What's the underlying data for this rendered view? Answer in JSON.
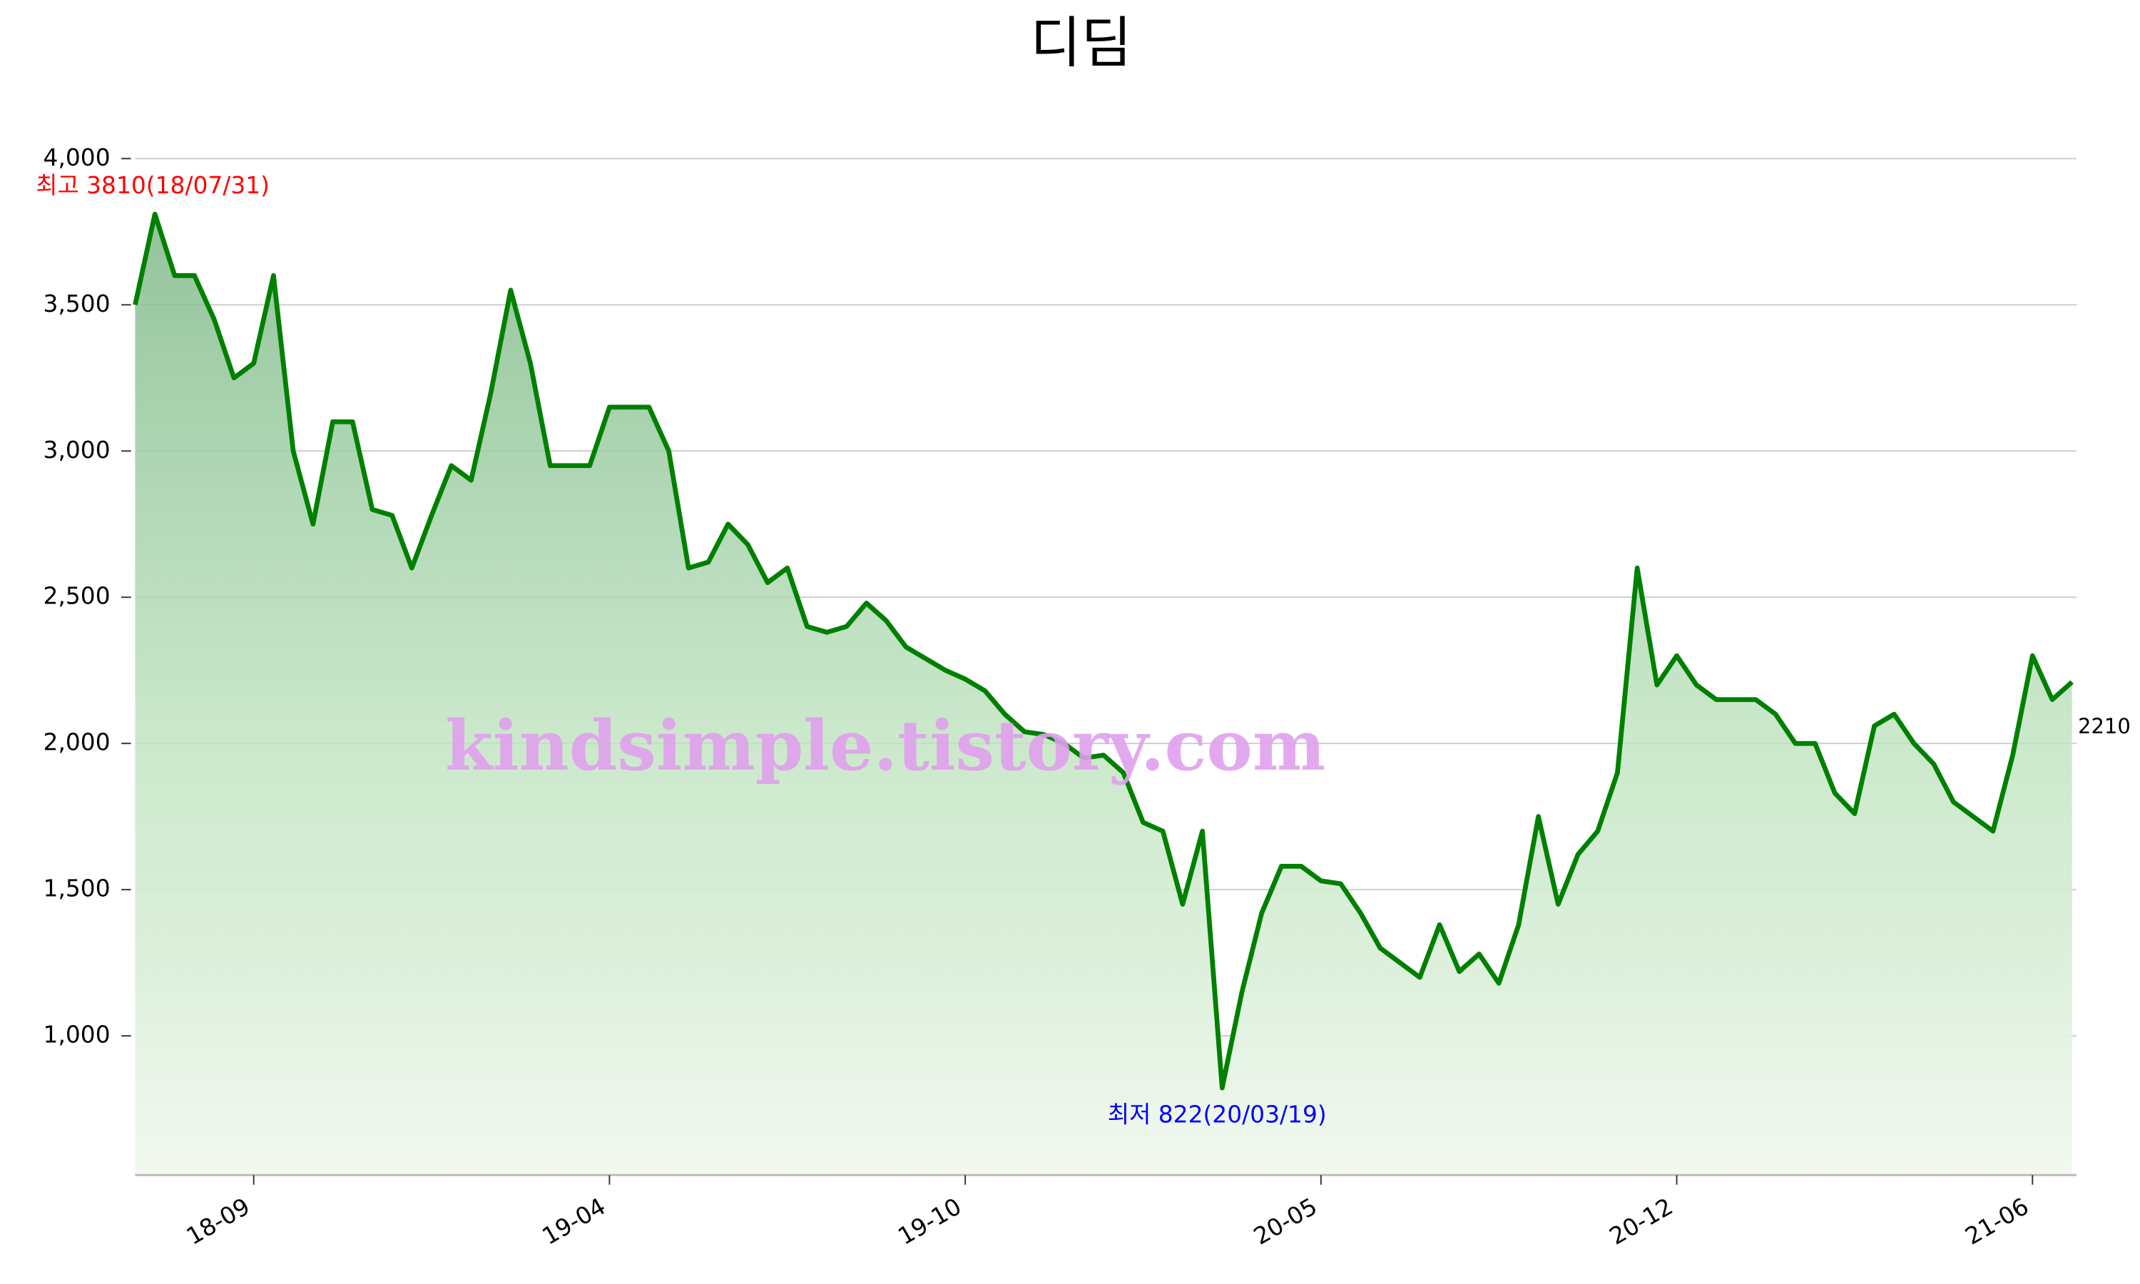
{
  "chart_data": {
    "type": "area-line",
    "title": "디딤",
    "watermark": "kindsimple.tistory.com",
    "color": "#008000",
    "x": [
      "18/07/20",
      "18/07/31",
      "18/08/11",
      "18/08/22",
      "18/09/02",
      "18/09/13",
      "18/09/24",
      "18/10/05",
      "18/10/16",
      "18/10/27",
      "18/11/07",
      "18/11/18",
      "18/11/29",
      "18/12/10",
      "18/12/21",
      "19/01/02",
      "19/01/12",
      "19/01/23",
      "19/02/03",
      "19/02/14",
      "19/02/25",
      "19/03/08",
      "19/03/19",
      "19/03/30",
      "19/04/10",
      "19/04/21",
      "19/05/02",
      "19/05/13",
      "19/05/24",
      "19/06/04",
      "19/06/15",
      "19/06/26",
      "19/07/07",
      "19/07/18",
      "19/07/29",
      "19/08/09",
      "19/08/20",
      "19/08/31",
      "19/09/11",
      "19/09/22",
      "19/10/03",
      "19/10/14",
      "19/10/25",
      "19/11/05",
      "19/11/16",
      "19/11/27",
      "19/12/08",
      "19/12/19",
      "19/12/30",
      "20/01/10",
      "20/01/21",
      "20/02/01",
      "20/02/12",
      "20/02/23",
      "20/03/08",
      "20/03/19",
      "20/03/30",
      "20/04/10",
      "20/04/21",
      "20/05/01",
      "20/05/12",
      "20/05/23",
      "20/06/03",
      "20/06/14",
      "20/06/25",
      "20/07/06",
      "20/07/17",
      "20/07/28",
      "20/08/08",
      "20/08/19",
      "20/08/30",
      "20/09/10",
      "20/09/21",
      "20/10/02",
      "20/10/13",
      "20/10/24",
      "20/11/04",
      "20/11/15",
      "20/12/01",
      "20/12/12",
      "20/12/23",
      "21/01/03",
      "21/01/14",
      "21/01/25",
      "21/02/05",
      "21/02/16",
      "21/02/27",
      "21/03/10",
      "21/03/21",
      "21/04/01",
      "21/04/12",
      "21/04/23",
      "21/05/04",
      "21/05/12",
      "21/05/20",
      "21/05/28",
      "21/06/04",
      "21/06/11",
      "21/06/18"
    ],
    "values": [
      3500,
      3810,
      3600,
      3600,
      3450,
      3250,
      3300,
      3600,
      3000,
      2750,
      3100,
      3100,
      2800,
      2780,
      2600,
      2780,
      2950,
      2900,
      3200,
      3550,
      3300,
      2950,
      2950,
      2950,
      3150,
      3150,
      3150,
      3000,
      2600,
      2620,
      2750,
      2680,
      2550,
      2600,
      2400,
      2380,
      2400,
      2480,
      2420,
      2330,
      2290,
      2250,
      2220,
      2180,
      2100,
      2040,
      2030,
      2000,
      1950,
      1960,
      1900,
      1730,
      1700,
      1450,
      1700,
      822,
      1150,
      1420,
      1580,
      1580,
      1530,
      1520,
      1420,
      1300,
      1250,
      1200,
      1380,
      1220,
      1280,
      1180,
      1380,
      1750,
      1450,
      1620,
      1700,
      1900,
      2600,
      2200,
      2300,
      2200,
      2150,
      2150,
      2150,
      2100,
      2000,
      2000,
      1830,
      1760,
      2060,
      2100,
      2000,
      1930,
      1800,
      1750,
      1700,
      1960,
      2300,
      2150,
      2210
    ],
    "ylim": [
      524,
      4000
    ],
    "yticks": [
      {
        "value": 1000,
        "label": "1,000"
      },
      {
        "value": 1500,
        "label": "1,500"
      },
      {
        "value": 2000,
        "label": "2,000"
      },
      {
        "value": 2500,
        "label": "2,500"
      },
      {
        "value": 3000,
        "label": "3,000"
      },
      {
        "value": 3500,
        "label": "3,500"
      },
      {
        "value": 4000,
        "label": "4,000"
      }
    ],
    "xticks": [
      {
        "value": "18/09/24",
        "label": "18-09"
      },
      {
        "value": "19/04/10",
        "label": "19-04"
      },
      {
        "value": "19/10/25",
        "label": "19-10"
      },
      {
        "value": "20/05/12",
        "label": "20-05"
      },
      {
        "value": "20/12/01",
        "label": "20-12"
      },
      {
        "value": "21/06/04",
        "label": "21-06"
      }
    ],
    "grid": true,
    "annotations": [
      {
        "text": "최고 3810(18/07/31)",
        "color": "#ff0000",
        "at": "max"
      },
      {
        "text": "최저 822(20/03/19)",
        "color": "#0000ff",
        "at": "min"
      }
    ]
  }
}
